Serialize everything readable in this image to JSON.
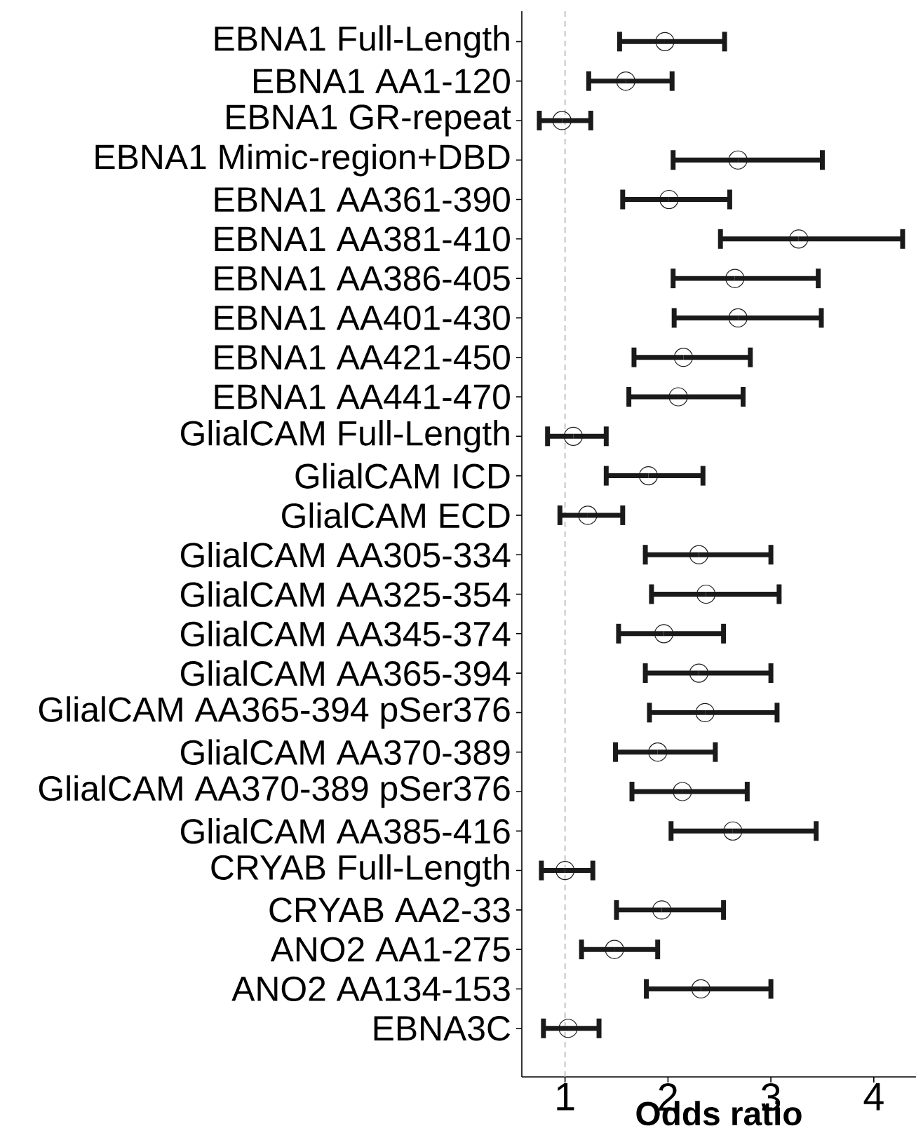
{
  "chart_data": {
    "type": "scatter",
    "orientation": "horizontal",
    "xlabel": "Odds ratio",
    "categories": [
      "EBNA1 Full-Length",
      "EBNA1 AA1-120",
      "EBNA1 GR-repeat",
      "EBNA1 Mimic-region+DBD",
      "EBNA1 AA361-390",
      "EBNA1 AA381-410",
      "EBNA1 AA386-405",
      "EBNA1 AA401-430",
      "EBNA1 AA421-450",
      "EBNA1 AA441-470",
      "GlialCAM Full-Length",
      "GlialCAM ICD",
      "GlialCAM ECD",
      "GlialCAM AA305-334",
      "GlialCAM AA325-354",
      "GlialCAM AA345-374",
      "GlialCAM AA365-394",
      "GlialCAM AA365-394 pSer376",
      "GlialCAM AA370-389",
      "GlialCAM AA370-389 pSer376",
      "GlialCAM AA385-416",
      "CRYAB Full-Length",
      "CRYAB AA2-33",
      "ANO2 AA1-275",
      "ANO2 AA134-153",
      "EBNA3C"
    ],
    "values": [
      1.97,
      1.59,
      0.97,
      2.68,
      2.01,
      3.27,
      2.65,
      2.68,
      2.15,
      2.1,
      1.08,
      1.81,
      1.22,
      2.3,
      2.37,
      1.96,
      2.3,
      2.36,
      1.9,
      2.14,
      2.63,
      1.0,
      1.94,
      1.48,
      2.32,
      1.03
    ],
    "errors": [
      [
        1.53,
        2.55
      ],
      [
        1.23,
        2.04
      ],
      [
        0.75,
        1.25
      ],
      [
        2.05,
        3.5
      ],
      [
        1.56,
        2.6
      ],
      [
        2.51,
        4.28
      ],
      [
        2.05,
        3.46
      ],
      [
        2.06,
        3.49
      ],
      [
        1.67,
        2.8
      ],
      [
        1.62,
        2.73
      ],
      [
        0.83,
        1.4
      ],
      [
        1.4,
        2.34
      ],
      [
        0.95,
        1.56
      ],
      [
        1.78,
        3.0
      ],
      [
        1.84,
        3.08
      ],
      [
        1.52,
        2.54
      ],
      [
        1.78,
        3.0
      ],
      [
        1.82,
        3.06
      ],
      [
        1.49,
        2.46
      ],
      [
        1.65,
        2.77
      ],
      [
        2.03,
        3.44
      ],
      [
        0.77,
        1.27
      ],
      [
        1.5,
        2.54
      ],
      [
        1.16,
        1.9
      ],
      [
        1.79,
        3.0
      ],
      [
        0.79,
        1.33
      ]
    ],
    "color": "#1a1a1a",
    "marker": "circle",
    "xlim": [
      0.58,
      4.41
    ],
    "xticks": [
      1,
      2,
      3,
      4
    ],
    "grid": false,
    "ref_lines": [
      {
        "axis": "x",
        "value": 1,
        "color": "#b3b3b3",
        "line_style": "dashed"
      }
    ]
  }
}
